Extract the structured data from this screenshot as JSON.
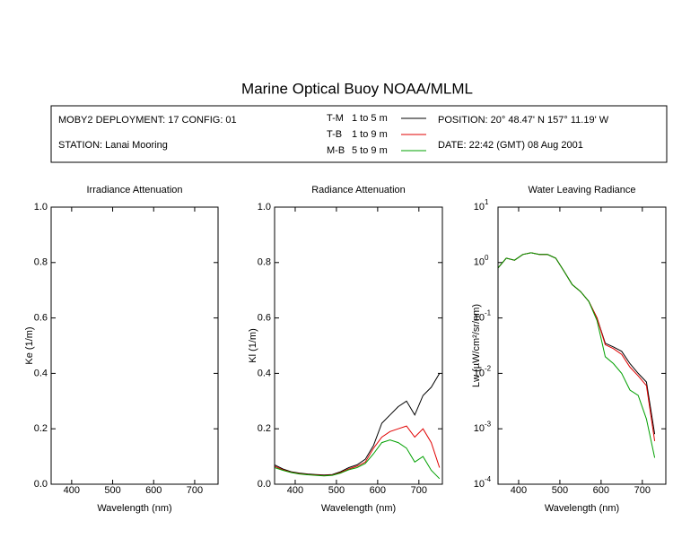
{
  "title": "Marine Optical Buoy NOAA/MLML",
  "info": {
    "deployment": "MOBY2 DEPLOYMENT: 17 CONFIG: 01",
    "station": "STATION: Lanai Mooring",
    "position": "POSITION: 20° 48.47' N   157° 11.19' W",
    "date": "DATE: 22:42 (GMT) 08 Aug 2001"
  },
  "legend": [
    {
      "code": "T-M",
      "range": "1 to 5  m",
      "color": "#000000"
    },
    {
      "code": "T-B",
      "range": "1 to 9  m",
      "color": "#e00000"
    },
    {
      "code": "M-B",
      "range": "5 to 9  m",
      "color": "#00a000"
    }
  ],
  "chart_data": [
    {
      "type": "line",
      "title": "Irradiance Attenuation",
      "x_label": "Wavelength (nm)",
      "y_label": "Ke  (1/m)",
      "x": [],
      "series": [],
      "xlim": [
        350,
        757
      ],
      "xticks": [
        400,
        500,
        600,
        700
      ],
      "ylim": [
        0,
        1
      ],
      "yticks": [
        {
          "value": 0,
          "label": "0.0"
        },
        {
          "value": 0.2,
          "label": "0.2"
        },
        {
          "value": 0.4,
          "label": "0.4"
        },
        {
          "value": 0.6,
          "label": "0.6"
        },
        {
          "value": 0.8,
          "label": "0.8"
        },
        {
          "value": 1,
          "label": "1.0"
        }
      ]
    },
    {
      "type": "line",
      "title": "Radiance Attenuation",
      "x_label": "Wavelength (nm)",
      "y_label": "Kl  (1/m)",
      "x": [
        350,
        370,
        390,
        410,
        430,
        450,
        470,
        490,
        510,
        530,
        550,
        570,
        590,
        610,
        630,
        650,
        670,
        690,
        710,
        730,
        750
      ],
      "series": [
        {
          "name": "T-M",
          "color": "#000000",
          "values": [
            0.07,
            0.055,
            0.045,
            0.04,
            0.037,
            0.035,
            0.033,
            0.035,
            0.045,
            0.06,
            0.07,
            0.09,
            0.14,
            0.22,
            0.25,
            0.28,
            0.3,
            0.25,
            0.32,
            0.35,
            0.4
          ]
        },
        {
          "name": "T-B",
          "color": "#e00000",
          "values": [
            0.065,
            0.052,
            0.043,
            0.038,
            0.035,
            0.033,
            0.031,
            0.033,
            0.042,
            0.055,
            0.065,
            0.08,
            0.13,
            0.17,
            0.19,
            0.2,
            0.21,
            0.17,
            0.2,
            0.15,
            0.06
          ]
        },
        {
          "name": "M-B",
          "color": "#00a000",
          "values": [
            0.06,
            0.05,
            0.042,
            0.037,
            0.034,
            0.032,
            0.03,
            0.032,
            0.04,
            0.052,
            0.06,
            0.075,
            0.11,
            0.15,
            0.16,
            0.15,
            0.13,
            0.08,
            0.1,
            0.05,
            0.02
          ]
        }
      ],
      "xlim": [
        350,
        757
      ],
      "xticks": [
        400,
        500,
        600,
        700
      ],
      "ylim": [
        0,
        1
      ],
      "yticks": [
        {
          "value": 0,
          "label": "0.0"
        },
        {
          "value": 0.2,
          "label": "0.2"
        },
        {
          "value": 0.4,
          "label": "0.4"
        },
        {
          "value": 0.6,
          "label": "0.6"
        },
        {
          "value": 0.8,
          "label": "0.8"
        },
        {
          "value": 1,
          "label": "1.0"
        }
      ]
    },
    {
      "type": "line",
      "title": "Water Leaving Radiance",
      "x_label": "Wavelength (nm)",
      "y_label": "Lw  (µW/cm²/sr/nm)",
      "log_y": true,
      "x": [
        350,
        370,
        390,
        410,
        430,
        450,
        470,
        490,
        510,
        530,
        550,
        570,
        590,
        610,
        630,
        650,
        670,
        690,
        710,
        730,
        750
      ],
      "series": [
        {
          "name": "T-M",
          "color": "#000000",
          "values": [
            0.8,
            1.2,
            1.1,
            1.4,
            1.5,
            1.4,
            1.4,
            1.2,
            0.7,
            0.4,
            0.3,
            0.2,
            0.1,
            0.035,
            0.03,
            0.025,
            0.015,
            0.01,
            0.007,
            0.0008,
            null
          ]
        },
        {
          "name": "T-B",
          "color": "#e00000",
          "values": [
            0.8,
            1.2,
            1.1,
            1.4,
            1.5,
            1.4,
            1.4,
            1.2,
            0.7,
            0.4,
            0.3,
            0.2,
            0.1,
            0.033,
            0.028,
            0.022,
            0.013,
            0.009,
            0.006,
            0.0006,
            null
          ]
        },
        {
          "name": "M-B",
          "color": "#00a000",
          "values": [
            0.8,
            1.2,
            1.1,
            1.4,
            1.5,
            1.4,
            1.4,
            1.2,
            0.7,
            0.4,
            0.3,
            0.2,
            0.09,
            0.02,
            0.015,
            0.01,
            0.005,
            0.004,
            0.0015,
            0.0003,
            null
          ]
        }
      ],
      "xlim": [
        350,
        757
      ],
      "xticks": [
        400,
        500,
        600,
        700
      ],
      "ylim": [
        0.0001,
        10
      ],
      "yticks": [
        {
          "value": 0.0001,
          "label": "10",
          "exponent": "-4"
        },
        {
          "value": 0.001,
          "label": "10",
          "exponent": "-3"
        },
        {
          "value": 0.01,
          "label": "10",
          "exponent": "-2"
        },
        {
          "value": 0.1,
          "label": "10",
          "exponent": "-1"
        },
        {
          "value": 1,
          "label": "10",
          "exponent": "0"
        },
        {
          "value": 10,
          "label": "10",
          "exponent": "1"
        }
      ]
    }
  ]
}
